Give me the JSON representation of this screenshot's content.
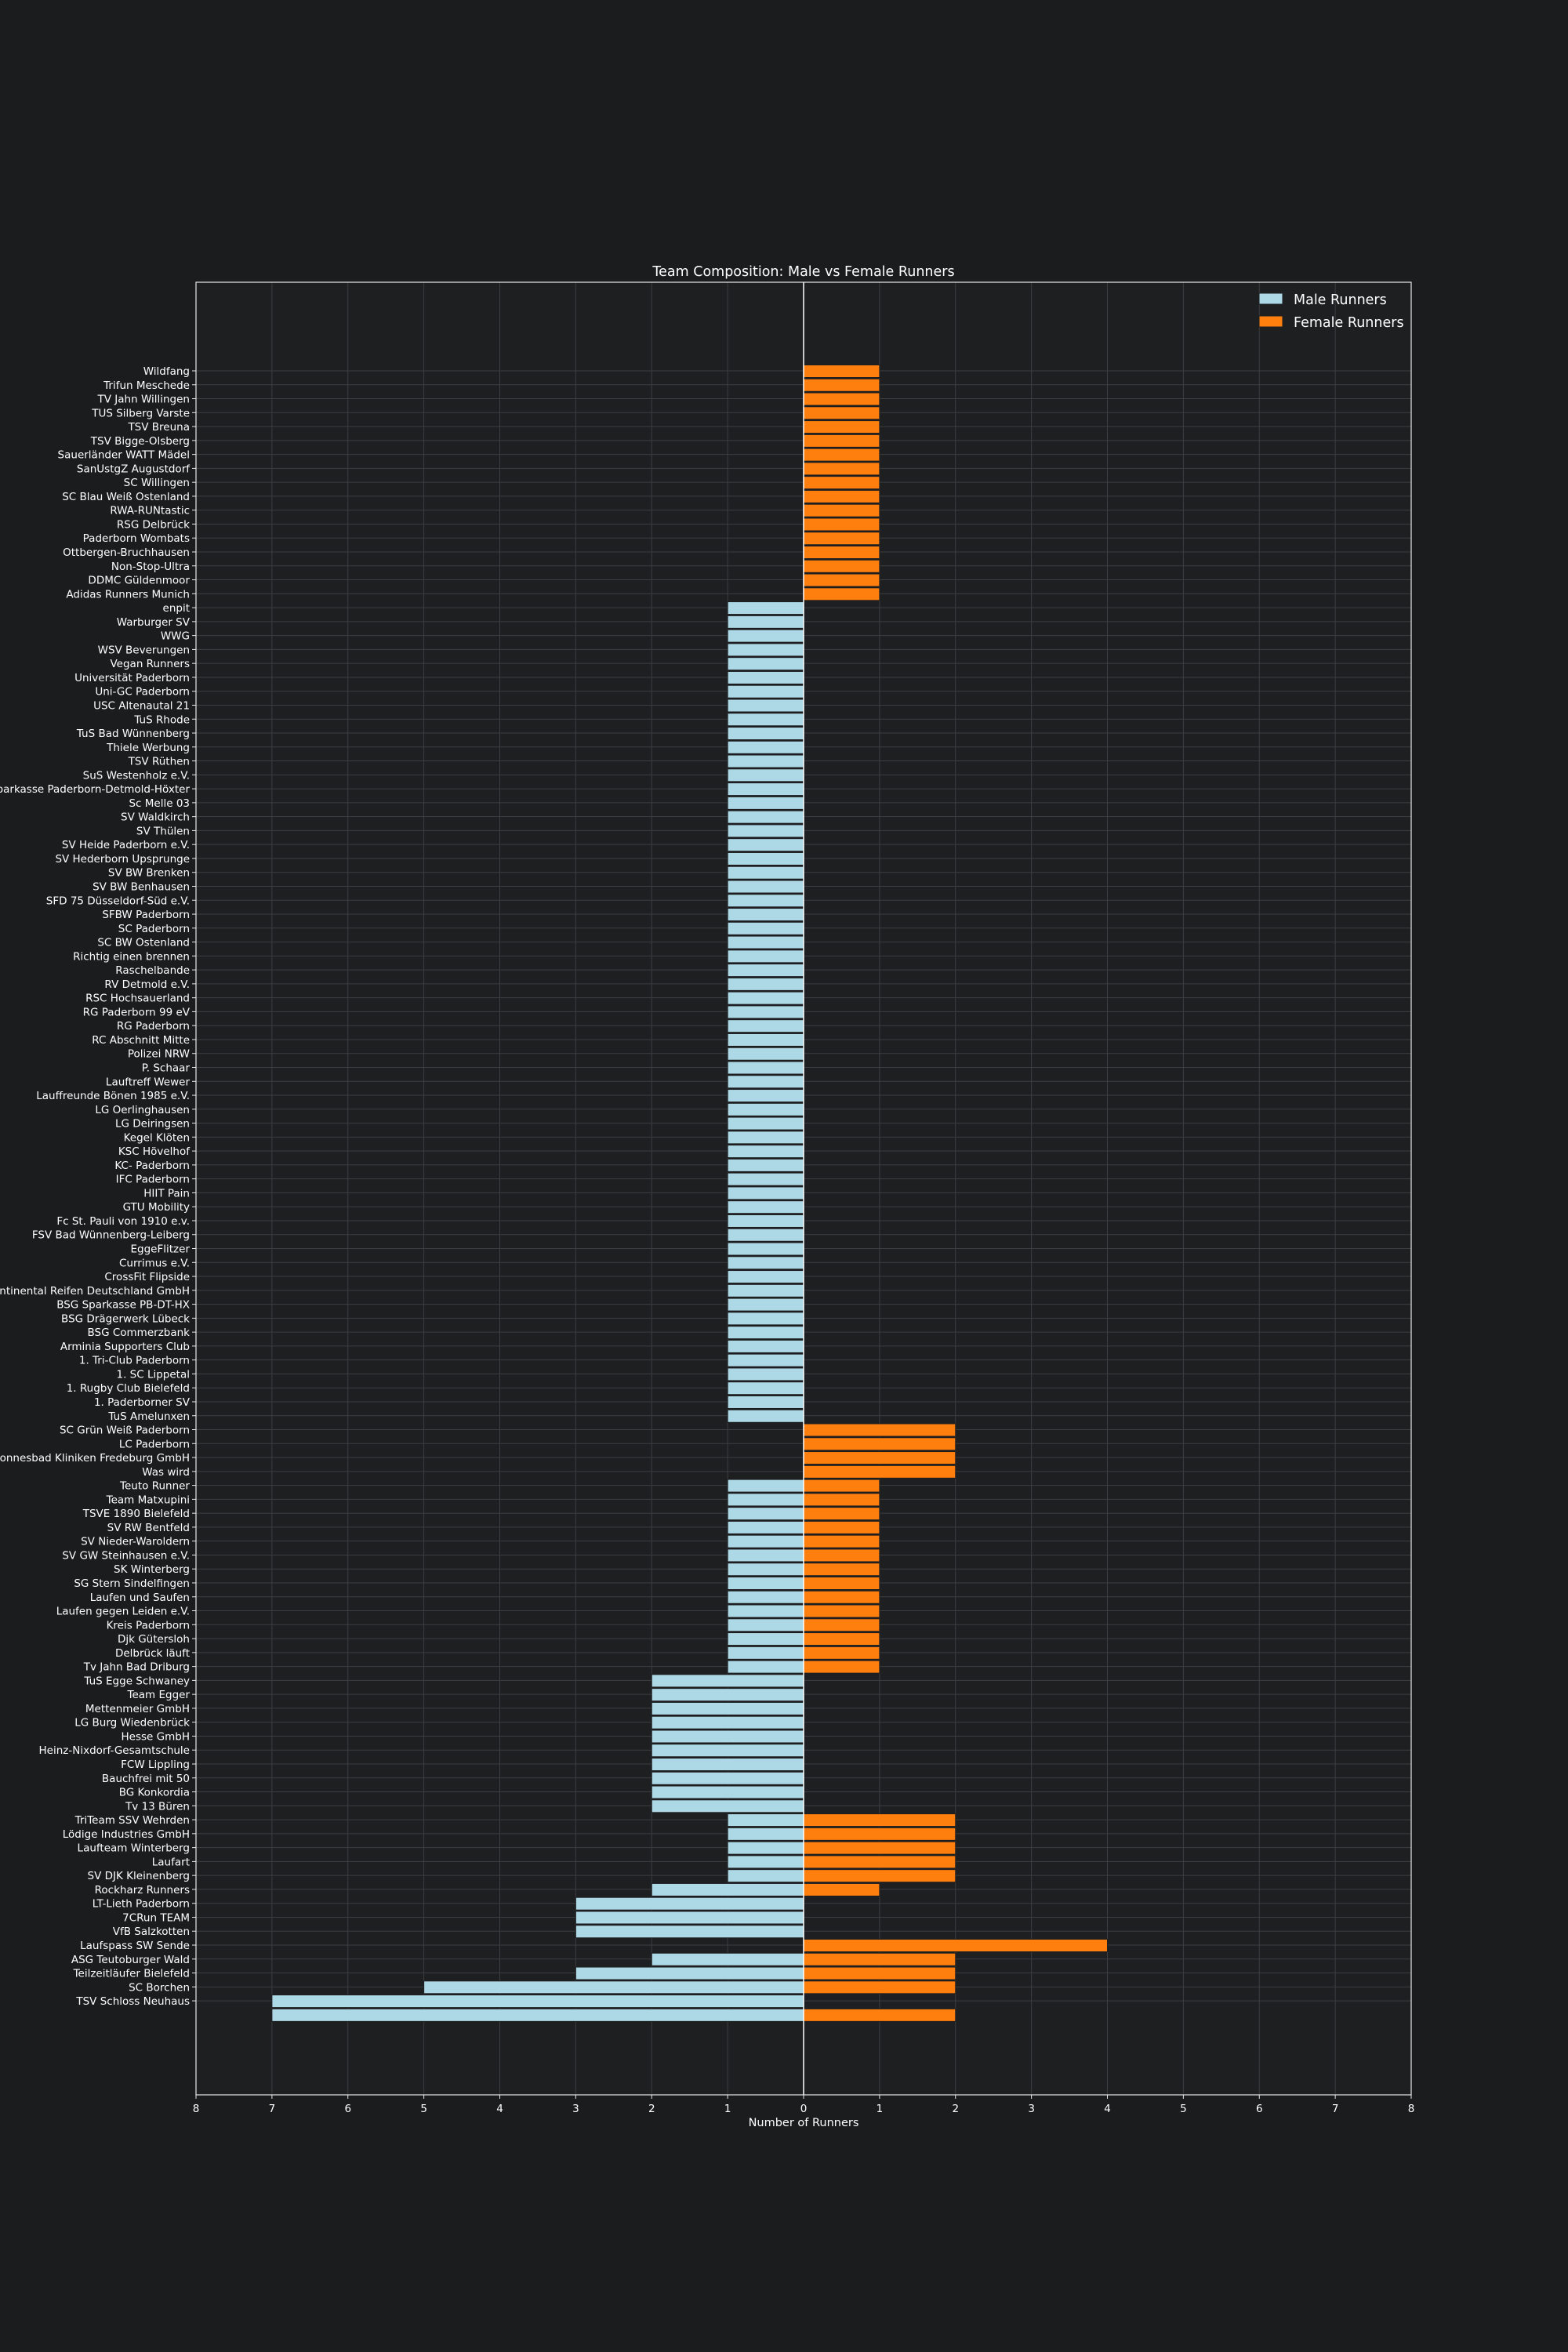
{
  "chart_data": {
    "type": "bar",
    "orientation": "horizontal-diverging",
    "title": "Team Composition: Male vs Female Runners",
    "xlabel": "Number of Runners",
    "ylabel": "",
    "xlim": [
      -8,
      8
    ],
    "xticks": [
      {
        "value": -8,
        "label": "8"
      },
      {
        "value": -7,
        "label": "7"
      },
      {
        "value": -6,
        "label": "6"
      },
      {
        "value": -5,
        "label": "5"
      },
      {
        "value": -4,
        "label": "4"
      },
      {
        "value": -3,
        "label": "3"
      },
      {
        "value": -2,
        "label": "2"
      },
      {
        "value": -1,
        "label": "1"
      },
      {
        "value": 0,
        "label": "0"
      },
      {
        "value": 1,
        "label": "1"
      },
      {
        "value": 2,
        "label": "2"
      },
      {
        "value": 3,
        "label": "3"
      },
      {
        "value": 4,
        "label": "4"
      },
      {
        "value": 5,
        "label": "5"
      },
      {
        "value": 6,
        "label": "6"
      },
      {
        "value": 7,
        "label": "7"
      },
      {
        "value": 8,
        "label": "8"
      }
    ],
    "grid": true,
    "legend_position": "top-right",
    "categories_top_to_bottom": [
      "Wildfang",
      "Trifun Meschede",
      "TV Jahn Willingen",
      "TUS Silberg Varste",
      "TSV Breuna",
      "TSV Bigge-Olsberg",
      "Sauerländer WATT Mädel",
      "SanUstgZ Augustdorf",
      "SC Willingen",
      "SC Blau Weiß Ostenland",
      "RWA-RUNtastic",
      "RSG Delbrück",
      "Paderborn Wombats",
      "Ottbergen-Bruchhausen",
      "Non-Stop-Ultra",
      "DDMC Güldenmoor",
      "Adidas Runners Munich",
      "enpit",
      "Warburger SV",
      "WWG",
      "WSV Beverungen",
      "Vegan Runners",
      "Universität Paderborn",
      "Uni-GC Paderborn",
      "USC Altenautal 21",
      "TuS Rhode",
      "TuS Bad Wünnenberg",
      "Thiele Werbung",
      "TSV Rüthen",
      "SuS Westenholz e.V.",
      "Sparkasse Paderborn-Detmold-Höxter",
      "Sc Melle 03",
      "SV Waldkirch",
      "SV Thülen",
      "SV Heide Paderborn e.V.",
      "SV Hederborn Upsprunge",
      "SV BW Brenken",
      "SV BW Benhausen",
      "SFD 75 Düsseldorf-Süd e.V.",
      "SFBW Paderborn",
      "SC Paderborn",
      "SC BW Ostenland",
      "Richtig einen brennen",
      "Raschelbande",
      "RV Detmold e.V.",
      "RSC Hochsauerland",
      "RG Paderborn 99 eV",
      "RG Paderborn",
      "RC Abschnitt Mitte",
      "Polizei NRW",
      "P. Schaar",
      "Lauftreff Wewer",
      "Lauffreunde Bönen 1985 e.V.",
      "LG Oerlinghausen",
      "LG Deiringsen",
      "Kegel Klöten",
      "KSC Hövelhof",
      "KC- Paderborn",
      "IFC Paderborn",
      "HIIT Pain",
      "GTU Mobility",
      "Fc St. Pauli von 1910 e.v.",
      "FSV Bad Wünnenberg-Leiberg",
      "EggeFlitzer",
      "Currimus e.V.",
      "CrossFit Flipside",
      "Continental Reifen Deutschland GmbH",
      "BSG Sparkasse PB-DT-HX",
      "BSG Drägerwerk Lübeck",
      "BSG Commerzbank",
      "Arminia Supporters Club",
      "1. Tri-Club Paderborn",
      "1. SC Lippetal",
      "1. Rugby Club Bielefeld",
      "1. Paderborner SV",
      "TuS Amelunxen",
      "SC Grün Weiß Paderborn",
      "LC Paderborn",
      "Sonnesbad Kliniken Fredeburg GmbH",
      "Was wird",
      "Teuto Runner",
      "Team Matxupini",
      "TSVE 1890 Bielefeld",
      "SV RW Bentfeld",
      "SV Nieder-Waroldern",
      "SV GW Steinhausen e.V.",
      "SK Winterberg",
      "SG Stern Sindelfingen",
      "Laufen und Saufen",
      "Laufen gegen Leiden e.V.",
      "Kreis Paderborn",
      "Djk Gütersloh",
      "Delbrück läuft",
      "Tv Jahn Bad Driburg",
      "TuS Egge Schwaney",
      "Team Egger",
      "Mettenmeier GmbH",
      "LG Burg Wiedenbrück",
      "Hesse GmbH",
      "Heinz-Nixdorf-Gesamtschule",
      "FCW Lippling",
      "Bauchfrei mit 50",
      "BG Konkordia",
      "Tv 13 Büren",
      "TriTeam SSV Wehrden",
      "Lödige Industries GmbH",
      "Laufteam Winterberg",
      "Laufart",
      "SV DJK Kleinenberg",
      "Rockharz Runners",
      "LT-Lieth Paderborn",
      "7CRun TEAM",
      "VfB Salzkotten",
      "Laufspass SW Sende",
      "ASG Teutoburger Wald",
      "Teilzeitläufer Bielefeld",
      "SC Borchen",
      "TSV Schloss Neuhaus"
    ],
    "series": [
      {
        "name": "Male Runners",
        "color": "#add8e6",
        "direction": "left",
        "values": [
          0,
          0,
          0,
          0,
          0,
          0,
          0,
          0,
          0,
          0,
          0,
          0,
          0,
          0,
          0,
          0,
          0,
          1,
          1,
          1,
          1,
          1,
          1,
          1,
          1,
          1,
          1,
          1,
          1,
          1,
          1,
          1,
          1,
          1,
          1,
          1,
          1,
          1,
          1,
          1,
          1,
          1,
          1,
          1,
          1,
          1,
          1,
          1,
          1,
          1,
          1,
          1,
          1,
          1,
          1,
          1,
          1,
          1,
          1,
          1,
          1,
          1,
          1,
          1,
          1,
          1,
          1,
          1,
          1,
          1,
          1,
          1,
          1,
          1,
          1,
          1,
          0,
          0,
          0,
          0,
          1,
          1,
          1,
          1,
          1,
          1,
          1,
          1,
          1,
          1,
          1,
          1,
          1,
          1,
          2,
          2,
          2,
          2,
          2,
          2,
          2,
          2,
          2,
          2,
          1,
          1,
          1,
          1,
          1,
          2,
          3,
          3,
          3,
          0,
          2,
          3,
          5,
          7,
          7
        ]
      },
      {
        "name": "Female Runners",
        "color": "#ff7f0e",
        "direction": "right",
        "values": [
          1,
          1,
          1,
          1,
          1,
          1,
          1,
          1,
          1,
          1,
          1,
          1,
          1,
          1,
          1,
          1,
          1,
          0,
          0,
          0,
          0,
          0,
          0,
          0,
          0,
          0,
          0,
          0,
          0,
          0,
          0,
          0,
          0,
          0,
          0,
          0,
          0,
          0,
          0,
          0,
          0,
          0,
          0,
          0,
          0,
          0,
          0,
          0,
          0,
          0,
          0,
          0,
          0,
          0,
          0,
          0,
          0,
          0,
          0,
          0,
          0,
          0,
          0,
          0,
          0,
          0,
          0,
          0,
          0,
          0,
          0,
          0,
          0,
          0,
          0,
          0,
          2,
          2,
          2,
          2,
          1,
          1,
          1,
          1,
          1,
          1,
          1,
          1,
          1,
          1,
          1,
          1,
          1,
          1,
          0,
          0,
          0,
          0,
          0,
          0,
          0,
          0,
          0,
          0,
          2,
          2,
          2,
          2,
          2,
          1,
          0,
          0,
          0,
          4,
          2,
          2,
          2,
          0,
          2
        ]
      }
    ]
  }
}
